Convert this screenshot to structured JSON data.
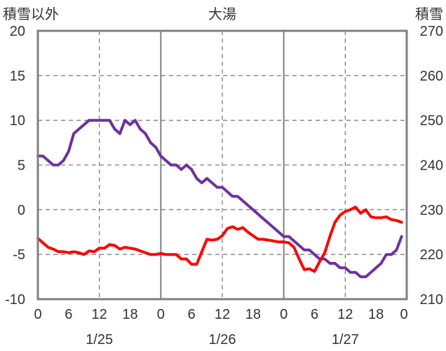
{
  "chart_data": {
    "type": "line",
    "title": "大湯",
    "ylabel_left": "積雪以外",
    "ylabel_right": "積雪",
    "x_range": [
      0,
      71
    ],
    "ylim_left": [
      -10,
      20
    ],
    "ylim_right": [
      210,
      270
    ],
    "yticks_left": [
      20,
      15,
      10,
      5,
      0,
      -5,
      -10
    ],
    "yticks_right": [
      270,
      260,
      250,
      240,
      230,
      220,
      210
    ],
    "xticks": [
      {
        "x": 0,
        "label": "0"
      },
      {
        "x": 6,
        "label": "6"
      },
      {
        "x": 12,
        "label": "12"
      },
      {
        "x": 18,
        "label": "18"
      },
      {
        "x": 24,
        "label": "0"
      },
      {
        "x": 30,
        "label": "6"
      },
      {
        "x": 36,
        "label": "12"
      },
      {
        "x": 42,
        "label": "18"
      },
      {
        "x": 48,
        "label": "0"
      },
      {
        "x": 54,
        "label": "6"
      },
      {
        "x": 60,
        "label": "12"
      },
      {
        "x": 66,
        "label": "18"
      },
      {
        "x": 72,
        "label": "0"
      }
    ],
    "date_labels": [
      {
        "x": 12,
        "label": "1/25"
      },
      {
        "x": 36,
        "label": "1/26"
      },
      {
        "x": 60,
        "label": "1/27"
      }
    ],
    "day_boundaries": [
      24,
      48
    ],
    "grid": true,
    "series": [
      {
        "axis": "right",
        "color": "#7030a0",
        "x": [
          0,
          1,
          2,
          3,
          4,
          5,
          6,
          7,
          8,
          9,
          10,
          11,
          12,
          13,
          14,
          15,
          16,
          17,
          18,
          19,
          20,
          21,
          22,
          23,
          24,
          25,
          26,
          27,
          28,
          29,
          30,
          31,
          32,
          33,
          34,
          35,
          36,
          37,
          38,
          39,
          40,
          41,
          42,
          43,
          44,
          45,
          46,
          47,
          48,
          49,
          50,
          51,
          52,
          53,
          54,
          55,
          56,
          57,
          58,
          59,
          60,
          61,
          62,
          63,
          64,
          65,
          66,
          67,
          68,
          69,
          70,
          71
        ],
        "values": [
          242,
          242,
          241,
          240,
          240,
          241,
          243,
          247,
          248,
          249,
          250,
          250,
          250,
          250,
          250,
          248,
          247,
          250,
          249,
          250,
          248,
          247,
          245,
          244,
          242,
          241,
          240,
          240,
          239,
          240,
          239,
          237,
          236,
          237,
          236,
          235,
          235,
          234,
          233,
          233,
          232,
          231,
          230,
          229,
          228,
          227,
          226,
          225,
          224,
          224,
          223,
          222,
          221,
          221,
          220,
          219,
          219,
          218,
          218,
          217,
          217,
          216,
          216,
          215,
          215,
          216,
          217,
          218,
          220,
          220,
          221,
          224
        ]
      },
      {
        "axis": "left",
        "color": "#ff0000",
        "x": [
          0,
          1,
          2,
          3,
          4,
          5,
          6,
          7,
          8,
          9,
          10,
          11,
          12,
          13,
          14,
          15,
          16,
          17,
          18,
          19,
          20,
          21,
          22,
          23,
          24,
          25,
          26,
          27,
          28,
          29,
          30,
          31,
          32,
          33,
          34,
          35,
          36,
          37,
          38,
          39,
          40,
          41,
          42,
          43,
          44,
          45,
          46,
          47,
          48,
          49,
          50,
          51,
          52,
          53,
          54,
          55,
          56,
          57,
          58,
          59,
          60,
          61,
          62,
          63,
          64,
          65,
          66,
          67,
          68,
          69,
          70,
          71
        ],
        "values": [
          -3.2,
          -3.7,
          -4.2,
          -4.4,
          -4.7,
          -4.7,
          -4.8,
          -4.7,
          -4.8,
          -5.0,
          -4.6,
          -4.7,
          -4.3,
          -4.3,
          -3.9,
          -4.0,
          -4.4,
          -4.2,
          -4.3,
          -4.4,
          -4.6,
          -4.8,
          -5.0,
          -5.0,
          -4.9,
          -5.0,
          -5.0,
          -5.0,
          -5.5,
          -5.5,
          -6.1,
          -6.1,
          -4.7,
          -3.3,
          -3.4,
          -3.3,
          -2.9,
          -2.1,
          -1.9,
          -2.2,
          -2.0,
          -2.5,
          -2.9,
          -3.3,
          -3.3,
          -3.4,
          -3.5,
          -3.6,
          -3.6,
          -3.7,
          -4.2,
          -5.5,
          -6.7,
          -6.6,
          -6.9,
          -5.8,
          -4.8,
          -3.0,
          -1.4,
          -0.6,
          -0.2,
          0.0,
          0.3,
          -0.4,
          0.0,
          -0.8,
          -0.9,
          -0.9,
          -0.8,
          -1.1,
          -1.2,
          -1.4
        ]
      }
    ]
  }
}
